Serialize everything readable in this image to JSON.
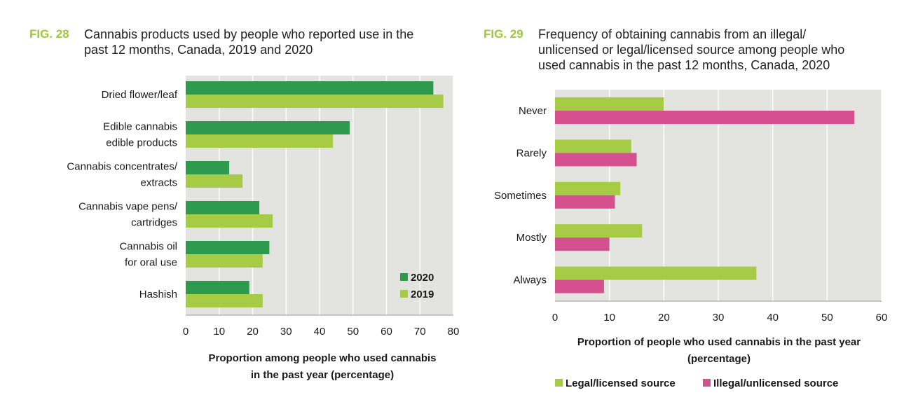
{
  "colors": {
    "dark_green": "#2e9a4e",
    "light_green": "#a6cc45",
    "pink": "#d4508f",
    "plot_bg": "#e3e3df",
    "fig_label": "#9cc83a"
  },
  "fig28": {
    "label": "FIG. 28",
    "title_line1": "Cannabis products used by people who reported use in the",
    "title_line2": "past 12 months, Canada, 2019 and 2020"
  },
  "fig29": {
    "label": "FIG. 29",
    "title_line1": "Frequency of obtaining cannabis from an illegal/",
    "title_line2": "unlicensed or legal/licensed source among people who",
    "title_line3": "used cannabis in the past 12 months, Canada, 2020"
  },
  "chart_data": [
    {
      "type": "bar",
      "orientation": "horizontal",
      "categories": [
        [
          "Dried flower/leaf"
        ],
        [
          "Edible cannabis",
          "edible products"
        ],
        [
          "Cannabis concentrates/",
          "extracts"
        ],
        [
          "Cannabis vape pens/",
          "cartridges"
        ],
        [
          "Cannabis oil",
          "for oral use"
        ],
        [
          "Hashish"
        ]
      ],
      "series": [
        {
          "name": "2020",
          "color": "#2e9a4e",
          "values": [
            74,
            49,
            13,
            22,
            25,
            19
          ]
        },
        {
          "name": "2019",
          "color": "#a6cc45",
          "values": [
            77,
            44,
            17,
            26,
            23,
            23
          ]
        }
      ],
      "xlim": [
        0,
        80
      ],
      "xticks": [
        0,
        10,
        20,
        30,
        40,
        50,
        60,
        70,
        80
      ],
      "xlabel_line1": "Proportion among people who used cannabis",
      "xlabel_line2": "in the past year (percentage)",
      "grid": true,
      "legend_position": "bottom-right inside"
    },
    {
      "type": "bar",
      "orientation": "horizontal",
      "categories": [
        [
          "Never"
        ],
        [
          "Rarely"
        ],
        [
          "Sometimes"
        ],
        [
          "Mostly"
        ],
        [
          "Always"
        ]
      ],
      "series": [
        {
          "name": "Legal/licensed source",
          "color": "#a6cc45",
          "values": [
            20,
            14,
            12,
            16,
            37
          ]
        },
        {
          "name": "Illegal/unlicensed source",
          "color": "#d4508f",
          "values": [
            55,
            15,
            11,
            10,
            9
          ]
        }
      ],
      "xlim": [
        0,
        60
      ],
      "xticks": [
        0,
        10,
        20,
        30,
        40,
        50,
        60
      ],
      "xlabel_line1": "Proportion of people who used cannabis in the past year",
      "xlabel_line2": "(percentage)",
      "grid": true,
      "legend_position": "bottom outside"
    }
  ]
}
